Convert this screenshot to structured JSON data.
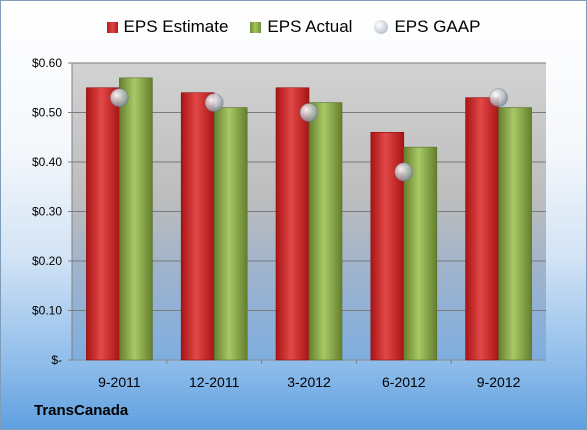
{
  "chart_data": {
    "type": "bar",
    "categories": [
      "9-2011",
      "12-2011",
      "3-2012",
      "6-2012",
      "9-2012"
    ],
    "series": [
      {
        "name": "EPS Estimate",
        "values": [
          0.55,
          0.54,
          0.55,
          0.46,
          0.53
        ],
        "color": "#cc2b2b"
      },
      {
        "name": "EPS Actual",
        "values": [
          0.57,
          0.51,
          0.52,
          0.43,
          0.51
        ],
        "color": "#8aab45"
      },
      {
        "name": "EPS GAAP",
        "values": [
          0.53,
          0.52,
          0.5,
          0.38,
          0.53
        ],
        "color": "#c0c6ce",
        "marker": "sphere"
      }
    ],
    "yticks": [
      "$-",
      "$0.10",
      "$0.20",
      "$0.30",
      "$0.40",
      "$0.50",
      "$0.60"
    ],
    "ylim": [
      0,
      0.6
    ],
    "grid": true,
    "legend": "top",
    "company": "TransCanada"
  }
}
